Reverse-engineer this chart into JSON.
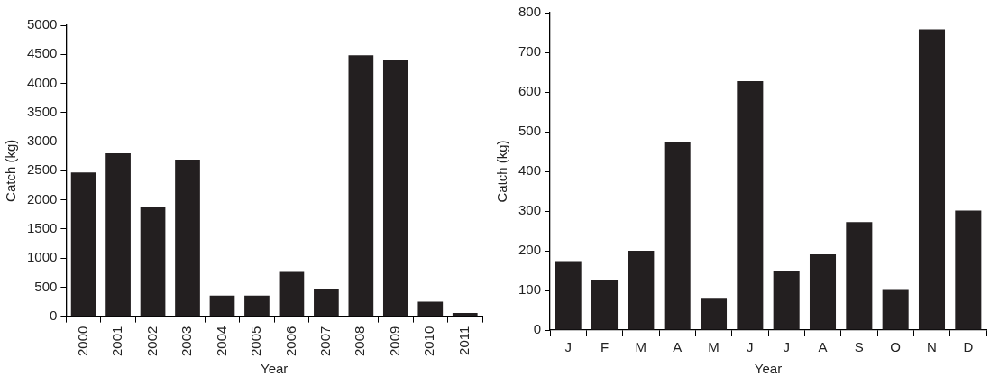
{
  "chart_data": [
    {
      "type": "bar",
      "categories": [
        "2000",
        "2001",
        "2002",
        "2003",
        "2004",
        "2005",
        "2006",
        "2007",
        "2008",
        "2009",
        "2010",
        "2011"
      ],
      "values": [
        2470,
        2800,
        1880,
        2690,
        355,
        355,
        760,
        465,
        4485,
        4400,
        250,
        55
      ],
      "color": "#231f20",
      "xlabel": "Year",
      "ylabel": "Catch (kg)",
      "ylim": [
        0,
        5000
      ],
      "yticks": [
        0,
        500,
        1000,
        1500,
        2000,
        2500,
        3000,
        3500,
        4000,
        4500,
        5000
      ]
    },
    {
      "type": "bar",
      "categories": [
        "J",
        "F",
        "M",
        "A",
        "M",
        "J",
        "J",
        "A",
        "S",
        "O",
        "N",
        "D"
      ],
      "values": [
        174,
        127,
        200,
        474,
        81,
        627,
        149,
        191,
        272,
        101,
        758,
        301
      ],
      "color": "#231f20",
      "xlabel": "Year",
      "ylabel": "Catch (kg)",
      "ylim": [
        0,
        800
      ],
      "yticks": [
        0,
        100,
        200,
        300,
        400,
        500,
        600,
        700,
        800
      ]
    }
  ]
}
